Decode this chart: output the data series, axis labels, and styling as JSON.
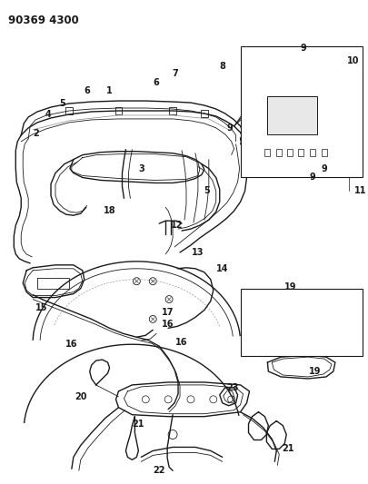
{
  "title": "90369 4300",
  "bg_color": "#ffffff",
  "line_color": "#1a1a1a",
  "title_fontsize": 8.5,
  "label_fontsize": 7.0,
  "fig_width": 4.06,
  "fig_height": 5.33,
  "dpi": 100
}
